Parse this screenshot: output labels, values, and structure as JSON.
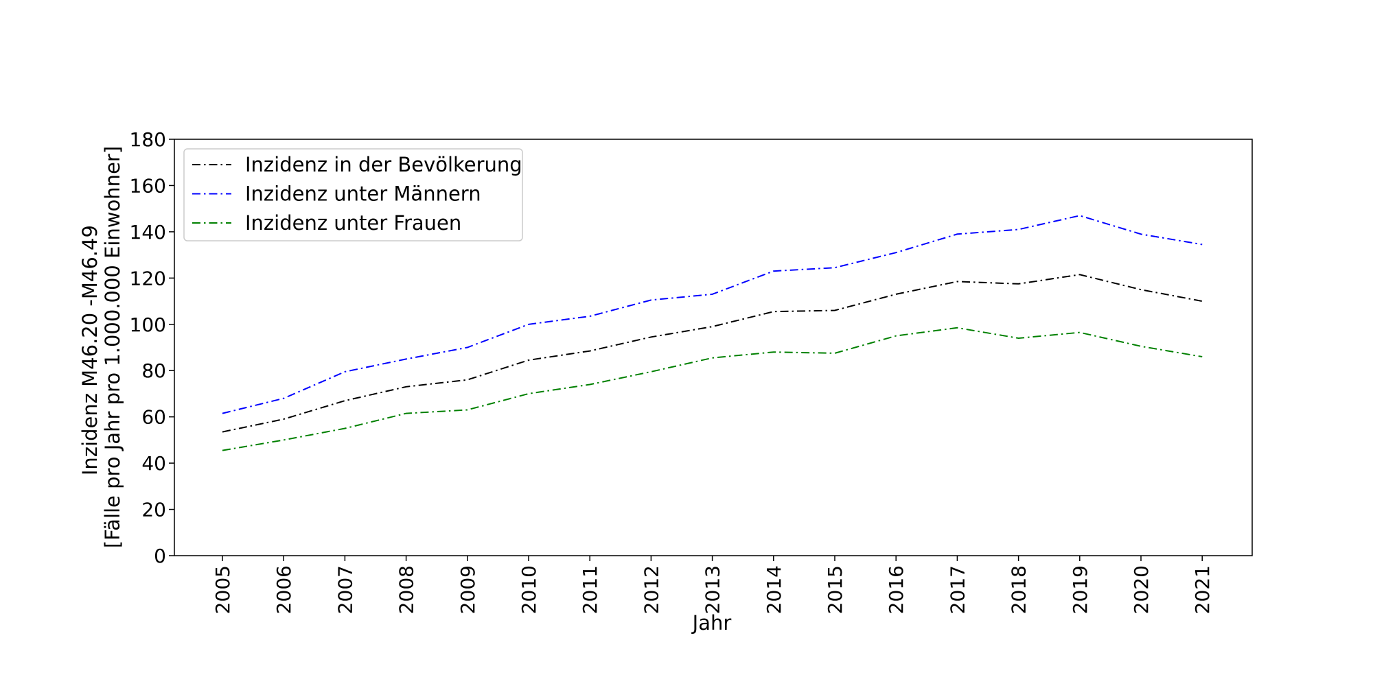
{
  "chart_data": {
    "type": "line",
    "title": "",
    "xlabel": "Jahr",
    "ylabel_lines": [
      "Inzidenz M46.20 -M46.49",
      "[Fälle pro Jahr pro 1.000.000 Einwohner]"
    ],
    "x": [
      2005,
      2006,
      2007,
      2008,
      2009,
      2010,
      2011,
      2012,
      2013,
      2014,
      2015,
      2016,
      2017,
      2018,
      2019,
      2020,
      2021
    ],
    "ylim": [
      0,
      180
    ],
    "yticks": [
      0,
      20,
      40,
      60,
      80,
      100,
      120,
      140,
      160,
      180
    ],
    "grid": false,
    "legend_position": "upper-left",
    "series": [
      {
        "name": "Inzidenz in der Bevölkerung",
        "color": "#000000",
        "values": [
          53.5,
          59,
          67,
          73,
          76,
          84.5,
          88.5,
          94.5,
          99,
          105.5,
          106,
          113,
          118.5,
          117.5,
          121.5,
          115,
          110
        ]
      },
      {
        "name": "Inzidenz unter Männern",
        "color": "#0000ff",
        "values": [
          61.5,
          68,
          79.5,
          85,
          90,
          100,
          103.5,
          110.5,
          113,
          123,
          124.5,
          131,
          139,
          141,
          147,
          139,
          134.5
        ]
      },
      {
        "name": "Inzidenz unter Frauen",
        "color": "#008000",
        "values": [
          45.5,
          50,
          55,
          61.5,
          63,
          70,
          74,
          79.5,
          85.5,
          88,
          87.5,
          95,
          98.5,
          94,
          96.5,
          90.5,
          86
        ]
      }
    ]
  }
}
